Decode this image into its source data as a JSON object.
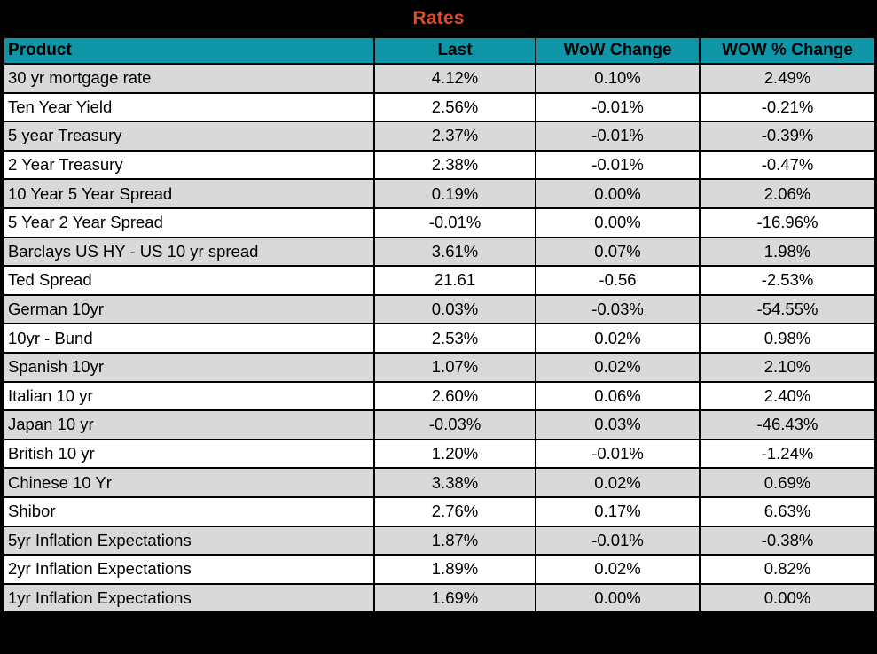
{
  "title": "Rates",
  "colors": {
    "frame_border": "#000000",
    "title_text": "#D94F27",
    "header_bg": "#0E95A6",
    "header_text": "#000000",
    "row_alt_bg": "#D9D9D9",
    "row_bg": "#FFFFFF",
    "cell_text": "#000000"
  },
  "chart_data": {
    "type": "table",
    "title": "Rates",
    "columns": [
      "Product",
      "Last",
      "WoW Change",
      "WOW % Change"
    ],
    "rows": [
      [
        "30 yr mortgage rate",
        "4.12%",
        "0.10%",
        "2.49%"
      ],
      [
        "Ten Year Yield",
        "2.56%",
        "-0.01%",
        "-0.21%"
      ],
      [
        "5 year Treasury",
        "2.37%",
        "-0.01%",
        "-0.39%"
      ],
      [
        "2 Year Treasury",
        "2.38%",
        "-0.01%",
        "-0.47%"
      ],
      [
        "10 Year 5 Year Spread",
        "0.19%",
        "0.00%",
        "2.06%"
      ],
      [
        "5 Year 2 Year Spread",
        "-0.01%",
        "0.00%",
        "-16.96%"
      ],
      [
        "Barclays US HY - US 10 yr spread",
        "3.61%",
        "0.07%",
        "1.98%"
      ],
      [
        "Ted Spread",
        "21.61",
        "-0.56",
        "-2.53%"
      ],
      [
        "German 10yr",
        "0.03%",
        "-0.03%",
        "-54.55%"
      ],
      [
        "10yr - Bund",
        "2.53%",
        "0.02%",
        "0.98%"
      ],
      [
        "Spanish 10yr",
        "1.07%",
        "0.02%",
        "2.10%"
      ],
      [
        "Italian 10 yr",
        "2.60%",
        "0.06%",
        "2.40%"
      ],
      [
        "Japan 10 yr",
        "-0.03%",
        "0.03%",
        "-46.43%"
      ],
      [
        "British 10 yr",
        "1.20%",
        "-0.01%",
        "-1.24%"
      ],
      [
        "Chinese 10 Yr",
        "3.38%",
        "0.02%",
        "0.69%"
      ],
      [
        "Shibor",
        "2.76%",
        "0.17%",
        "6.63%"
      ],
      [
        "5yr Inflation Expectations",
        "1.87%",
        "-0.01%",
        "-0.38%"
      ],
      [
        "2yr Inflation Expectations",
        "1.89%",
        "0.02%",
        "0.82%"
      ],
      [
        "1yr Inflation Expectations",
        "1.69%",
        "0.00%",
        "0.00%"
      ]
    ],
    "layout": {
      "header_alignment": [
        "left",
        "center",
        "center",
        "center"
      ],
      "cell_alignment": [
        "left",
        "center",
        "center",
        "center"
      ],
      "zebra_striping": "odd-rows-gray"
    }
  }
}
